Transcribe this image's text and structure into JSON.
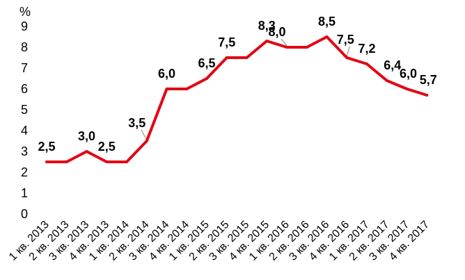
{
  "chart_data": {
    "type": "line",
    "unit_label": "%",
    "ylim": [
      0,
      9
    ],
    "yticks": [
      "0",
      "1",
      "2",
      "3",
      "4",
      "5",
      "6",
      "7",
      "8",
      "9"
    ],
    "grid": false,
    "categories": [
      "1 кв. 2013",
      "2 кв. 2013",
      "3 кв. 2013",
      "4 кв. 2013",
      "1 кв. 2014",
      "2 кв. 2014",
      "3 кв. 2014",
      "4 кв. 2014",
      "1 кв. 2015",
      "2 кв. 2015",
      "3 кв. 2015",
      "4 кв. 2015",
      "1 кв. 2016",
      "2 кв. 2016",
      "3 кв. 2016",
      "4 кв. 2016",
      "1 кв. 2017",
      "2 кв. 2017",
      "3 кв. 2017",
      "4 кв. 2017"
    ],
    "series": [
      {
        "values": [
          2.5,
          2.5,
          3.0,
          2.5,
          2.5,
          3.5,
          6.0,
          6.0,
          6.5,
          7.5,
          7.5,
          8.3,
          8.0,
          8.0,
          8.5,
          7.5,
          7.2,
          6.4,
          6.0,
          5.7
        ],
        "color": "#e30613"
      }
    ],
    "data_labels": [
      {
        "index": 0,
        "text": "2,5"
      },
      {
        "index": 2,
        "text": "3,0"
      },
      {
        "index": 3,
        "text": "2,5"
      },
      {
        "index": 5,
        "text": "3,5"
      },
      {
        "index": 6,
        "text": "6,0"
      },
      {
        "index": 8,
        "text": "6,5"
      },
      {
        "index": 9,
        "text": "7,5"
      },
      {
        "index": 11,
        "text": "8,3"
      },
      {
        "index": 12,
        "text": "8,0"
      },
      {
        "index": 14,
        "text": "8,5"
      },
      {
        "index": 15,
        "text": "7,5"
      },
      {
        "index": 16,
        "text": "7,2"
      },
      {
        "index": 17,
        "text": "6,4"
      },
      {
        "index": 18,
        "text": "6,0"
      },
      {
        "index": 19,
        "text": "5,7"
      }
    ],
    "leader_color": "#a6a6a6"
  }
}
